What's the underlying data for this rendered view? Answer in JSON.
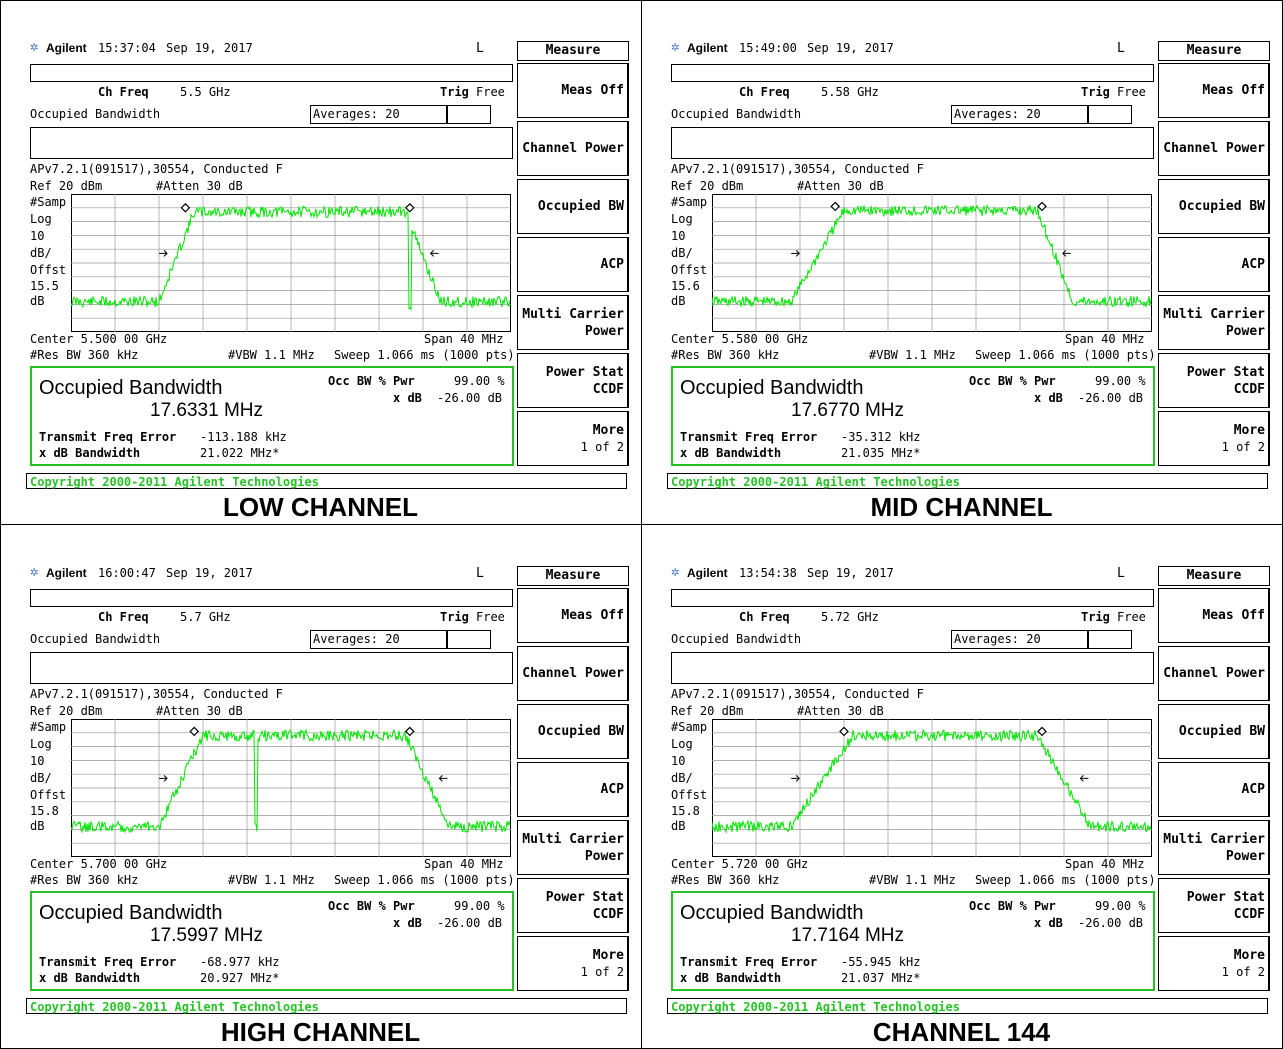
{
  "common": {
    "brand": "Agilent",
    "date": "Sep 19, 2017",
    "status_letter": "L",
    "ch_freq_label": "Ch Freq",
    "trig_label": "Trig",
    "trig_value": "Free",
    "meas_name": "Occupied Bandwidth",
    "averages": "Averages: 20",
    "title_line": "APv7.2.1(091517),30554, Conducted F",
    "ref": "Ref 20 dBm",
    "atten": "#Atten 30 dB",
    "samp": "#Samp",
    "log": "Log",
    "ten": "10",
    "db_per": "dB/",
    "offst": "Offst",
    "db": "dB",
    "span": "Span 40 MHz",
    "res_bw": "#Res BW 360 kHz",
    "vbw": "#VBW 1.1 MHz",
    "sweep": "Sweep 1.066 ms (1000 pts)",
    "result_title": "Occupied Bandwidth",
    "occ_bw_pwr_label": "Occ BW % Pwr",
    "occ_bw_pwr_value": "99.00 %",
    "xdb_label": "x dB",
    "xdb_value": "-26.00 dB",
    "tfe_label": "Transmit Freq Error",
    "xdb_bw_label": "x dB Bandwidth",
    "copyright": "Copyright 2000-2011 Agilent Technologies",
    "trace_color": "#00e600",
    "result_border_color": "#27c227",
    "menu": {
      "header": "Measure",
      "items": [
        {
          "l1": "Meas Off",
          "l2": ""
        },
        {
          "l1": "Channel Power",
          "l2": ""
        },
        {
          "l1": "Occupied BW",
          "l2": ""
        },
        {
          "l1": "ACP",
          "l2": ""
        },
        {
          "l1": "Multi Carrier",
          "l2": "Power"
        },
        {
          "l1": "Power Stat",
          "l2": "CCDF"
        },
        {
          "l1": "More",
          "l2": "1 of 2"
        }
      ]
    }
  },
  "panels": [
    {
      "caption": "LOW CHANNEL",
      "time": "15:37:04",
      "ch_freq": "5.5 GHz",
      "offset_value": "15.5",
      "center": "Center 5.500 00 GHz",
      "occupied_bw": "17.6331 MHz",
      "tfe_value": "-113.188 kHz",
      "xdb_bw_value": "21.022 MHz*",
      "trace": {
        "floor": 0.78,
        "plateau": 0.13,
        "rise": [
          0.2,
          0.28
        ],
        "fall": [
          0.76,
          0.84
        ],
        "notch": 0.77
      }
    },
    {
      "caption": "MID CHANNEL",
      "time": "15:49:00",
      "ch_freq": "5.58 GHz",
      "offset_value": "15.6",
      "center": "Center 5.580 00 GHz",
      "occupied_bw": "17.6770 MHz",
      "tfe_value": "-35.312 kHz",
      "xdb_bw_value": "21.035 MHz*",
      "trace": {
        "floor": 0.78,
        "plateau": 0.12,
        "rise": [
          0.18,
          0.3
        ],
        "fall": [
          0.74,
          0.82
        ],
        "notch": -1
      }
    },
    {
      "caption": "HIGH CHANNEL",
      "time": "16:00:47",
      "ch_freq": "5.7 GHz",
      "offset_value": "15.8",
      "center": "Center 5.700 00 GHz",
      "occupied_bw": "17.5997 MHz",
      "tfe_value": "-68.977 kHz",
      "xdb_bw_value": "20.927 MHz*",
      "trace": {
        "floor": 0.78,
        "plateau": 0.12,
        "rise": [
          0.2,
          0.3
        ],
        "fall": [
          0.76,
          0.86
        ],
        "notch": 0.42
      }
    },
    {
      "caption": "CHANNEL 144",
      "time": "13:54:38",
      "ch_freq": "5.72 GHz",
      "offset_value": "15.8",
      "center": "Center 5.720 00 GHz",
      "occupied_bw": "17.7164 MHz",
      "tfe_value": "-55.945 kHz",
      "xdb_bw_value": "21.037 MHz*",
      "trace": {
        "floor": 0.78,
        "plateau": 0.12,
        "rise": [
          0.18,
          0.32
        ],
        "fall": [
          0.74,
          0.86
        ],
        "notch": -1
      }
    }
  ]
}
